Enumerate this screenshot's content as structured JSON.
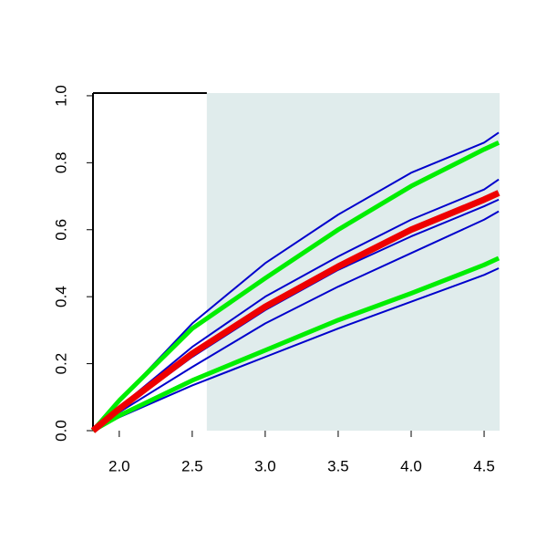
{
  "chart_data": {
    "type": "line",
    "x": [
      1.82,
      2.0,
      2.5,
      3.0,
      3.5,
      4.0,
      4.5,
      4.6
    ],
    "series": [
      {
        "color": "#0000cc",
        "width": 2,
        "values": [
          0,
          0.09,
          0.32,
          0.5,
          0.645,
          0.77,
          0.86,
          0.89
        ]
      },
      {
        "color": "#0000cc",
        "width": 2,
        "values": [
          0,
          0.07,
          0.25,
          0.4,
          0.52,
          0.63,
          0.72,
          0.75
        ]
      },
      {
        "color": "#0000cc",
        "width": 2,
        "values": [
          0,
          0.06,
          0.22,
          0.36,
          0.48,
          0.58,
          0.67,
          0.69
        ]
      },
      {
        "color": "#0000cc",
        "width": 2,
        "values": [
          0,
          0.055,
          0.19,
          0.32,
          0.43,
          0.53,
          0.63,
          0.655
        ]
      },
      {
        "color": "#0000cc",
        "width": 2,
        "values": [
          0,
          0.04,
          0.135,
          0.22,
          0.305,
          0.385,
          0.465,
          0.485
        ]
      },
      {
        "color": "#00ee00",
        "width": 5,
        "values": [
          0,
          0.09,
          0.305,
          0.455,
          0.6,
          0.73,
          0.84,
          0.86
        ]
      },
      {
        "color": "#00ee00",
        "width": 5,
        "values": [
          0,
          0.045,
          0.15,
          0.24,
          0.33,
          0.41,
          0.495,
          0.515
        ]
      },
      {
        "color": "#ee0000",
        "width": 7,
        "values": [
          0,
          0.065,
          0.23,
          0.37,
          0.49,
          0.6,
          0.69,
          0.71
        ]
      }
    ],
    "xlim": [
      1.82,
      4.606
    ],
    "ylim": [
      0,
      1.008
    ],
    "xticks": [
      {
        "value": 2,
        "label": "2.0"
      },
      2.5,
      {
        "value": 3,
        "label": "3.0"
      },
      3.5,
      {
        "value": 4,
        "label": "4.0"
      },
      4.5
    ],
    "yticks": [
      {
        "value": 0,
        "label": "0.0"
      },
      0.2,
      0.4,
      0.6,
      0.8,
      {
        "value": 1,
        "label": "1.0"
      }
    ],
    "shade": {
      "from": 2.6,
      "color": "#e0ecec"
    }
  }
}
